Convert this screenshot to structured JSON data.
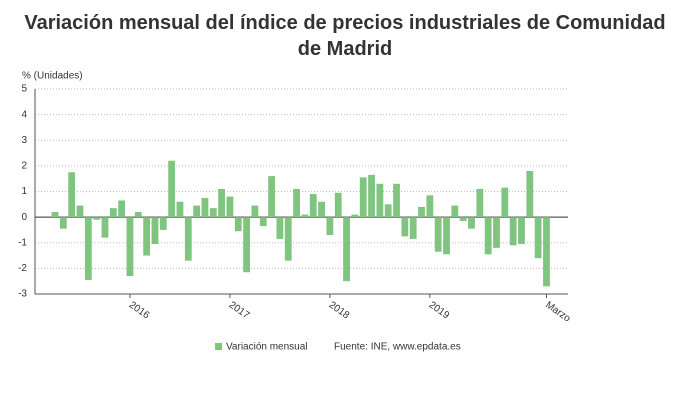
{
  "chart_data": {
    "type": "bar",
    "title": "Variación mensual del índice de precios industriales de Comunidad de Madrid",
    "y_label": "% (Unidades)",
    "source": "Fuente: INE, www.epdata.es",
    "categories": [
      null,
      null,
      null,
      null,
      null,
      null,
      null,
      null,
      null,
      "2016",
      null,
      null,
      null,
      null,
      null,
      null,
      null,
      null,
      null,
      null,
      null,
      "2017",
      null,
      null,
      null,
      null,
      null,
      null,
      null,
      null,
      null,
      null,
      null,
      "2018",
      null,
      null,
      null,
      null,
      null,
      null,
      null,
      null,
      null,
      null,
      null,
      "2019",
      null,
      null,
      null,
      null,
      null,
      null,
      null,
      null,
      null,
      null,
      null,
      null,
      null,
      "Marzo"
    ],
    "series": [
      {
        "name": "Variación mensual",
        "color": "#7fc47f",
        "values": [
          0.2,
          -0.45,
          1.75,
          0.45,
          -2.45,
          -0.1,
          -0.8,
          0.35,
          0.65,
          -2.3,
          0.2,
          -1.5,
          -1.05,
          -0.5,
          2.2,
          0.6,
          -1.7,
          0.45,
          0.75,
          0.35,
          1.1,
          0.8,
          -0.55,
          -2.15,
          0.45,
          -0.35,
          1.6,
          -0.85,
          -1.7,
          1.1,
          0.1,
          0.9,
          0.6,
          -0.7,
          0.95,
          -2.5,
          0.1,
          1.55,
          1.65,
          1.3,
          0.5,
          1.3,
          -0.75,
          -0.85,
          0.4,
          0.85,
          -1.35,
          -1.45,
          0.45,
          -0.15,
          -0.45,
          1.1,
          -1.45,
          -1.2,
          1.15,
          -1.1,
          -1.05,
          1.8,
          -1.6,
          -2.7
        ]
      }
    ],
    "ylim": [
      -3,
      5
    ],
    "yticks": [
      -3,
      -2,
      -1,
      0,
      1,
      2,
      3,
      4,
      5
    ],
    "grid": true
  }
}
